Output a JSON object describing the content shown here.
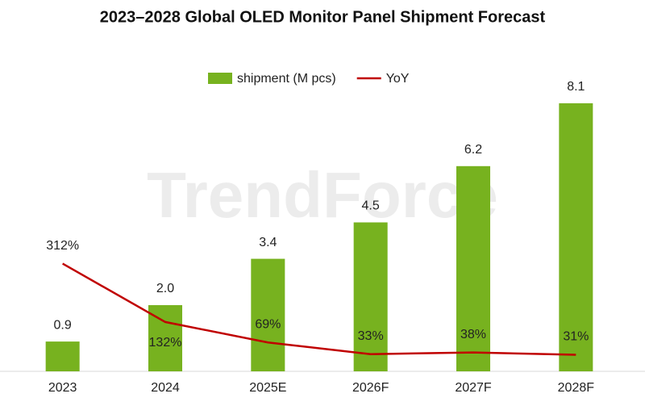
{
  "chart_data": {
    "type": "bar",
    "title": "2023–2028 Global OLED Monitor Panel Shipment Forecast",
    "watermark": "TrendForce",
    "categories": [
      "2023",
      "2024",
      "2025E",
      "2026F",
      "2027F",
      "2028F"
    ],
    "series": [
      {
        "name": "shipment (M pcs)",
        "type": "bar",
        "color": "#77b21f",
        "values": [
          0.9,
          2.0,
          3.4,
          4.5,
          6.2,
          8.1
        ],
        "value_labels": [
          "0.9",
          "2.0",
          "3.4",
          "4.5",
          "6.2",
          "8.1"
        ]
      },
      {
        "name": "YoY",
        "type": "line",
        "axis": "y2",
        "color": "#c00000",
        "values": [
          312,
          132,
          69,
          33,
          38,
          31
        ],
        "value_labels": [
          "312%",
          "132%",
          "69%",
          "33%",
          "38%",
          "31%"
        ]
      }
    ],
    "ylim": [
      0,
      10
    ],
    "y2lim": [
      -20,
      1000
    ],
    "legend": "top"
  }
}
